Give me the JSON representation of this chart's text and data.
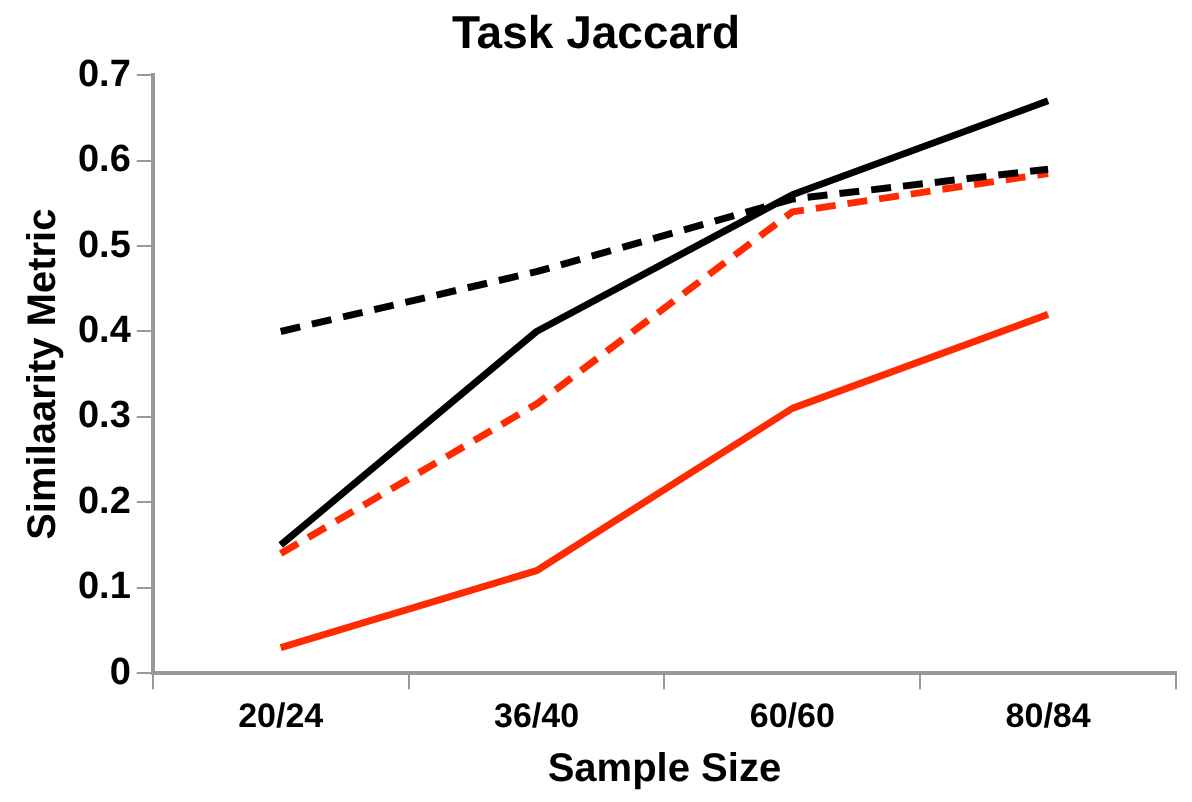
{
  "chart_data": {
    "type": "line",
    "title": "Task Jaccard",
    "xlabel": "Sample Size",
    "ylabel": "Similaarity Metric",
    "categories": [
      "20/24",
      "36/40",
      "60/60",
      "80/84"
    ],
    "series": [
      {
        "color": "#000000",
        "line_style": "solid",
        "values": [
          0.15,
          0.4,
          0.56,
          0.67
        ]
      },
      {
        "color": "#000000",
        "line_style": "dashed",
        "values": [
          0.4,
          0.47,
          0.555,
          0.59
        ]
      },
      {
        "color": "#ff2a00",
        "line_style": "dashed",
        "values": [
          0.14,
          0.315,
          0.54,
          0.585
        ]
      },
      {
        "color": "#ff2a00",
        "line_style": "solid",
        "values": [
          0.03,
          0.12,
          0.31,
          0.42
        ]
      }
    ],
    "ylim": [
      0,
      0.7
    ],
    "yticks": [
      0,
      0.1,
      0.2,
      0.3,
      0.4,
      0.5,
      0.6,
      0.7
    ],
    "grid": false,
    "legend": false,
    "marker": "none"
  }
}
